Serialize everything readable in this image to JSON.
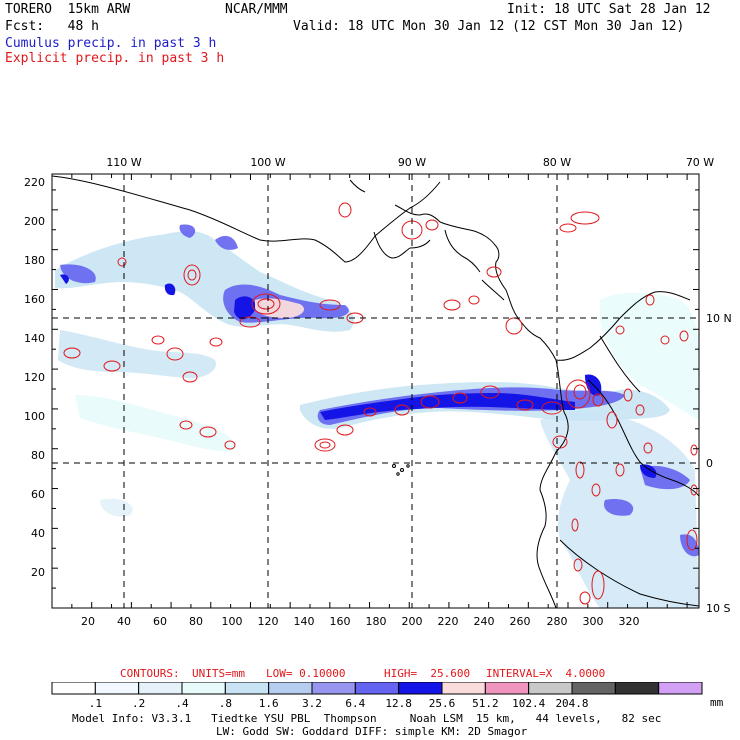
{
  "header": {
    "model": "TORERO  15km ARW",
    "org": "NCAR/MMM",
    "init": "Init: 18 UTC Sat 28 Jan 12",
    "fcst": "Fcst:   48 h",
    "valid": "Valid: 18 UTC Mon 30 Jan 12 (12 CST Mon 30 Jan 12)",
    "field1": "Cumulus precip. in past 3 h",
    "field2": "Explicit precip. in past 3 h"
  },
  "axes": {
    "top_lon_labels": [
      "110 W",
      "100 W",
      "90 W",
      "80 W",
      "70 W"
    ],
    "right_lat_labels": [
      "10 N",
      "0",
      "10 S"
    ],
    "y_ticks": [
      "220",
      "200",
      "180",
      "160",
      "140",
      "120",
      "100",
      "80",
      "60",
      "40",
      "20"
    ],
    "x_ticks": [
      "20",
      "40",
      "60",
      "80",
      "100",
      "120",
      "140",
      "160",
      "180",
      "200",
      "220",
      "240",
      "260",
      "280",
      "300",
      "320"
    ]
  },
  "contour_info": {
    "contours": "CONTOURS:",
    "units": "UNITS=mm",
    "low": "LOW= 0.10000",
    "high": "HIGH=  25.600",
    "interval": "INTERVAL=X  4.0000"
  },
  "colorbar": {
    "colors": [
      "#ffffff",
      "#f2f8ff",
      "#e6f2fa",
      "#e8fbfb",
      "#c8e4f4",
      "#b4cdf0",
      "#9696f0",
      "#6464f0",
      "#1414e6",
      "#fadcdc",
      "#f096be",
      "#c8c8c8",
      "#646464",
      "#323232",
      "#d2a0f5"
    ],
    "labels": [
      ".1",
      ".2",
      ".4",
      ".8",
      "1.6",
      "3.2",
      "6.4",
      "12.8",
      "25.6",
      "51.2",
      "102.4",
      "204.8"
    ],
    "unit": "mm"
  },
  "footer": {
    "line1": "Model Info: V3.3.1   Tiedtke YSU PBL  Thompson     Noah LSM  15 km,   44 levels,   82 sec",
    "line2": "LW: Godd SW: Goddard DIFF: simple KM: 2D Smagor"
  }
}
